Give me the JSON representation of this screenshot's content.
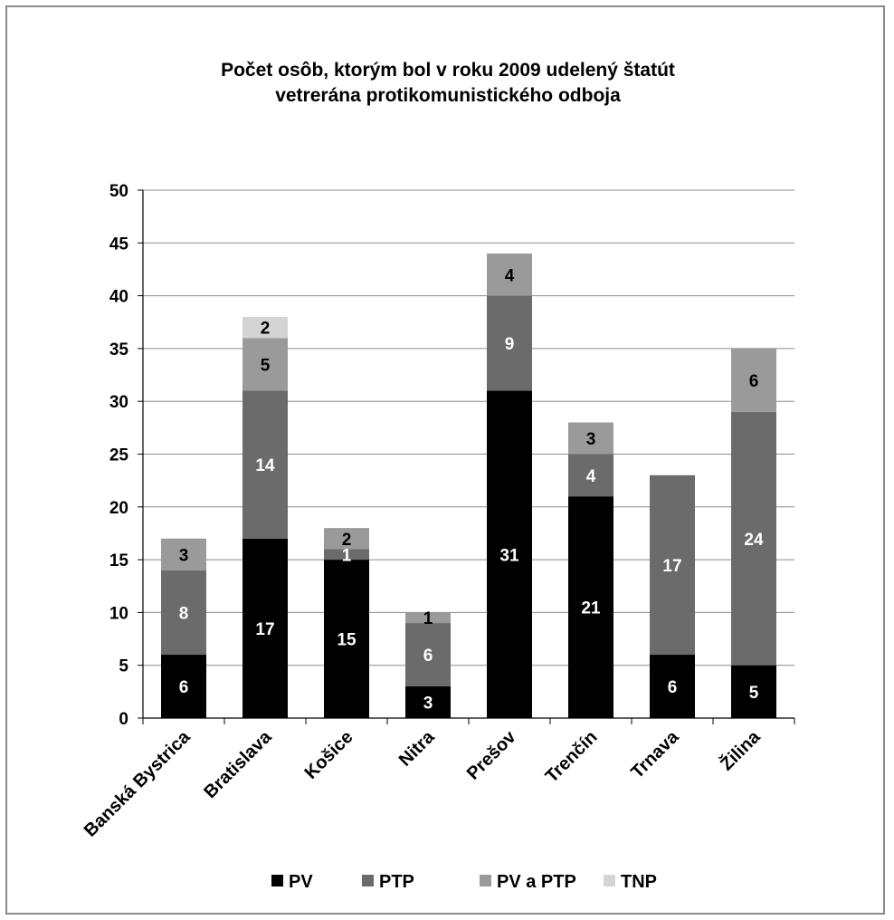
{
  "chart_data": {
    "type": "bar",
    "stacked": true,
    "title_lines": [
      "Počet osôb, ktorým bol v roku 2009 udelený štatút",
      "vetrerána protikomunistického odboja"
    ],
    "categories": [
      "Banská Bystrica",
      "Bratislava",
      "Košice",
      "Nitra",
      "Prešov",
      "Trenčín",
      "Trnava",
      "Žilina"
    ],
    "series": [
      {
        "name": "PV",
        "color": "#000000",
        "label_color": "#ffffff",
        "values": [
          6,
          17,
          15,
          3,
          31,
          21,
          6,
          5
        ]
      },
      {
        "name": "PTP",
        "color": "#6b6b6b",
        "label_color": "#ffffff",
        "values": [
          8,
          14,
          1,
          6,
          9,
          4,
          17,
          24
        ]
      },
      {
        "name": "PV a PTP",
        "color": "#9a9a9a",
        "label_color": "#000000",
        "values": [
          3,
          5,
          2,
          1,
          4,
          3,
          0,
          6
        ]
      },
      {
        "name": "TNP",
        "color": "#d4d4d4",
        "label_color": "#000000",
        "values": [
          0,
          2,
          0,
          0,
          0,
          0,
          0,
          0
        ]
      }
    ],
    "ylim": [
      0,
      50
    ],
    "yticks": [
      0,
      5,
      10,
      15,
      20,
      25,
      30,
      35,
      40,
      45,
      50
    ],
    "grid": true,
    "legend_position": "bottom"
  }
}
